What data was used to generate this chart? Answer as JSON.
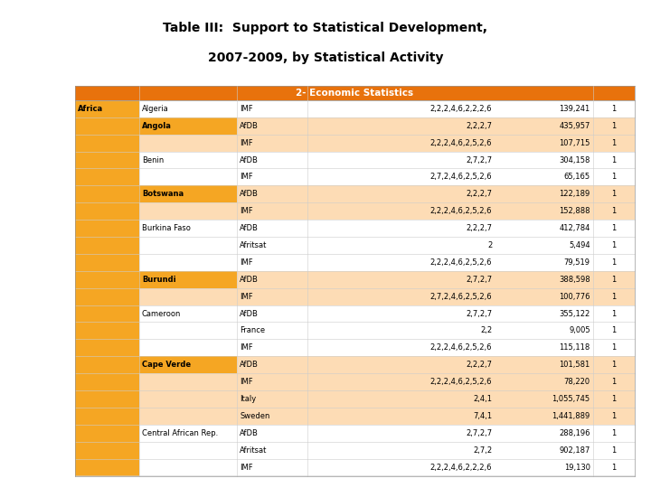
{
  "title_line1": "Table III:  Support to Statistical Development,",
  "title_line2": "2007-2009, by Statistical Activity",
  "header_text": "2- Economic Statistics",
  "header_bg": "#E8720C",
  "header_fg": "#FFFFFF",
  "africa_bg": "#F5A623",
  "row_alt_bg": "#FDDCB5",
  "row_white_bg": "#FFFFFF",
  "rows": [
    {
      "country": "Algeria",
      "donor": "IMF",
      "activities": "2,2,2,4,6,2,2,2,6",
      "amount": "139,241",
      "count": "1",
      "highlight": false,
      "country_bold": false
    },
    {
      "country": "Angola",
      "donor": "AfDB",
      "activities": "2,2,2,7",
      "amount": "435,957",
      "count": "1",
      "highlight": true,
      "country_bold": true
    },
    {
      "country": "",
      "donor": "IMF",
      "activities": "2,2,2,4,6,2,5,2,6",
      "amount": "107,715",
      "count": "1",
      "highlight": true,
      "country_bold": false
    },
    {
      "country": "Benin",
      "donor": "AfDB",
      "activities": "2,7,2,7",
      "amount": "304,158",
      "count": "1",
      "highlight": false,
      "country_bold": false
    },
    {
      "country": "",
      "donor": "IMF",
      "activities": "2,7,2,4,6,2,5,2,6",
      "amount": "65,165",
      "count": "1",
      "highlight": false,
      "country_bold": false
    },
    {
      "country": "Botswana",
      "donor": "AfDB",
      "activities": "2,2,2,7",
      "amount": "122,189",
      "count": "1",
      "highlight": true,
      "country_bold": true
    },
    {
      "country": "",
      "donor": "IMF",
      "activities": "2,2,2,4,6,2,5,2,6",
      "amount": "152,888",
      "count": "1",
      "highlight": true,
      "country_bold": false
    },
    {
      "country": "Burkina Faso",
      "donor": "AfDB",
      "activities": "2,2,2,7",
      "amount": "412,784",
      "count": "1",
      "highlight": false,
      "country_bold": false
    },
    {
      "country": "",
      "donor": "Afritsat",
      "activities": "2",
      "amount": "5,494",
      "count": "1",
      "highlight": false,
      "country_bold": false
    },
    {
      "country": "",
      "donor": "IMF",
      "activities": "2,2,2,4,6,2,5,2,6",
      "amount": "79,519",
      "count": "1",
      "highlight": false,
      "country_bold": false
    },
    {
      "country": "Burundi",
      "donor": "AfDB",
      "activities": "2,7,2,7",
      "amount": "388,598",
      "count": "1",
      "highlight": true,
      "country_bold": true
    },
    {
      "country": "",
      "donor": "IMF",
      "activities": "2,7,2,4,6,2,5,2,6",
      "amount": "100,776",
      "count": "1",
      "highlight": true,
      "country_bold": false
    },
    {
      "country": "Cameroon",
      "donor": "AfDB",
      "activities": "2,7,2,7",
      "amount": "355,122",
      "count": "1",
      "highlight": false,
      "country_bold": false
    },
    {
      "country": "",
      "donor": "France",
      "activities": "2,2",
      "amount": "9,005",
      "count": "1",
      "highlight": false,
      "country_bold": false
    },
    {
      "country": "",
      "donor": "IMF",
      "activities": "2,2,2,4,6,2,5,2,6",
      "amount": "115,118",
      "count": "1",
      "highlight": false,
      "country_bold": false
    },
    {
      "country": "Cape Verde",
      "donor": "AfDB",
      "activities": "2,2,2,7",
      "amount": "101,581",
      "count": "1",
      "highlight": true,
      "country_bold": true
    },
    {
      "country": "",
      "donor": "IMF",
      "activities": "2,2,2,4,6,2,5,2,6",
      "amount": "78,220",
      "count": "1",
      "highlight": true,
      "country_bold": false
    },
    {
      "country": "",
      "donor": "Italy",
      "activities": "2,4,1",
      "amount": "1,055,745",
      "count": "1",
      "highlight": true,
      "country_bold": false
    },
    {
      "country": "",
      "donor": "Sweden",
      "activities": "7,4,1",
      "amount": "1,441,889",
      "count": "1",
      "highlight": true,
      "country_bold": false
    },
    {
      "country": "Central African Rep.",
      "donor": "AfDB",
      "activities": "2,7,2,7",
      "amount": "288,196",
      "count": "1",
      "highlight": false,
      "country_bold": false
    },
    {
      "country": "",
      "donor": "Afritsat",
      "activities": "2,7,2",
      "amount": "902,187",
      "count": "1",
      "highlight": false,
      "country_bold": false
    },
    {
      "country": "",
      "donor": "IMF",
      "activities": "2,2,2,4,6,2,2,2,6",
      "amount": "19,130",
      "count": "1",
      "highlight": false,
      "country_bold": false
    }
  ]
}
